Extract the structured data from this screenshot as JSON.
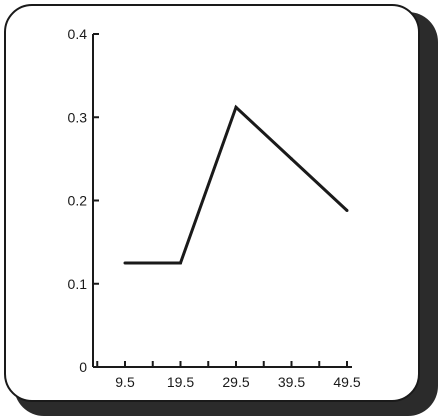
{
  "chart_data": {
    "type": "line",
    "x": [
      9.5,
      19.5,
      29.5,
      39.5,
      49.5
    ],
    "x_tick_labels": [
      "9.5",
      "19.5",
      "29.5",
      "39.5",
      "49.5"
    ],
    "xlim": [
      0,
      49.5
    ],
    "ylim": [
      0,
      0.4
    ],
    "y_ticks": [
      0,
      0.1,
      0.2,
      0.3,
      0.4
    ],
    "y_tick_labels": [
      "0",
      "0.1",
      "0.2",
      "0.3",
      "0.4"
    ],
    "series": [
      {
        "values": [
          0.125,
          0.125,
          0.312,
          0.25,
          0.188
        ]
      }
    ],
    "title": "",
    "xlabel": "",
    "ylabel": "",
    "grid": false,
    "line_color": "#1a1a1a"
  }
}
